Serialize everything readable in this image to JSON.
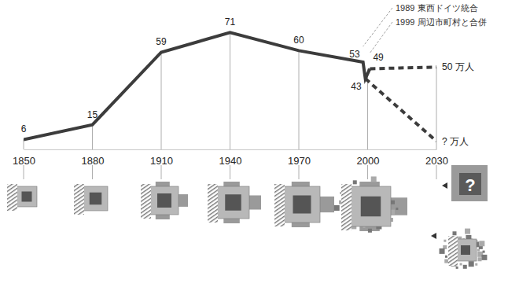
{
  "chart_data": {
    "type": "line",
    "xlim": [
      1850,
      2030
    ],
    "xticks": [
      1850,
      1880,
      1910,
      1940,
      1970,
      2000,
      2030
    ],
    "ylim": [
      0,
      75
    ],
    "tick_labels": "x",
    "grid": false,
    "series": [
      {
        "color": "#3c3c3c",
        "line_style": "solid",
        "data_labels": true,
        "x": [
          1850,
          1880,
          1910,
          1940,
          1970,
          1998,
          1999,
          2001
        ],
        "values": [
          6,
          15,
          59,
          71,
          60,
          53,
          43,
          49
        ]
      },
      {
        "color": "#3c3c3c",
        "line_style": "dashed",
        "data_labels": true,
        "x": [
          2001,
          2030
        ],
        "values": [
          49,
          50
        ],
        "value_labels": [
          null,
          "50 万人"
        ]
      },
      {
        "color": "#3c3c3c",
        "line_style": "dashed",
        "data_labels": false,
        "x": [
          1999,
          2030
        ],
        "values": [
          43,
          5
        ]
      }
    ],
    "annotations": [
      {
        "text": "1989 東西ドイツ統合",
        "x": 1998,
        "y": 53
      },
      {
        "text": "1999 周辺市町村と合併",
        "x": 2001,
        "y": 49
      },
      {
        "text": "? 万人",
        "x": 2030,
        "y": 5
      }
    ],
    "pictogram_label": "?"
  }
}
